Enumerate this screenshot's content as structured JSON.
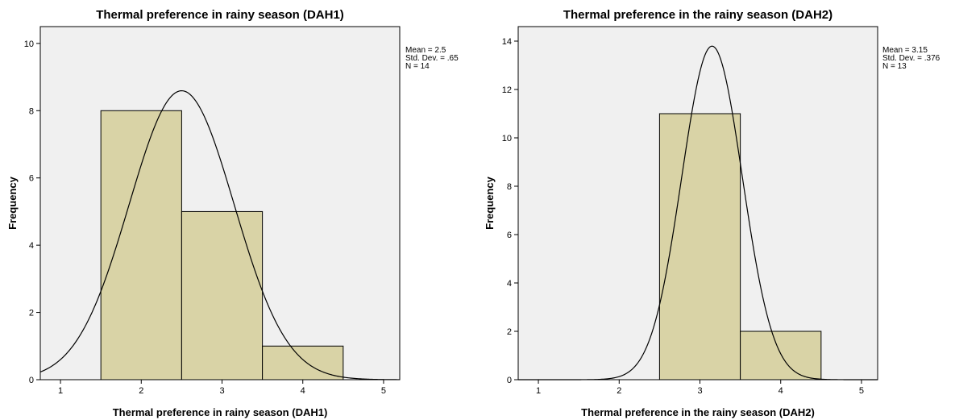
{
  "chart_data": [
    {
      "type": "bar",
      "title": "Thermal preference in rainy season (DAH1)",
      "xlabel": "Thermal preference in rainy season (DAH1)",
      "ylabel": "Frequency",
      "xlim": [
        0.75,
        5.2
      ],
      "ylim": [
        0,
        10.5
      ],
      "xticks": [
        1,
        2,
        3,
        4,
        5
      ],
      "yticks": [
        0,
        2,
        4,
        6,
        8,
        10
      ],
      "bins": [
        {
          "from": 1.5,
          "to": 2.5,
          "value": 8
        },
        {
          "from": 2.5,
          "to": 3.5,
          "value": 5
        },
        {
          "from": 3.5,
          "to": 4.5,
          "value": 1
        }
      ],
      "normal_curve": {
        "mean": 2.5,
        "sd": 0.65,
        "n": 14,
        "bin_width": 1
      },
      "stats": [
        "Mean = 2.5",
        "Std. Dev. = .65",
        "N = 14"
      ],
      "bar_color": "#d9d3a6",
      "background_color": "#f0f0f0",
      "grid": false
    },
    {
      "type": "bar",
      "title": "Thermal preference in the rainy season (DAH2)",
      "xlabel": "Thermal preference in the rainy season (DAH2)",
      "ylabel": "Frequency",
      "xlim": [
        0.75,
        5.2
      ],
      "ylim": [
        0,
        14.6
      ],
      "xticks": [
        1,
        2,
        3,
        4,
        5
      ],
      "yticks": [
        0,
        2,
        4,
        6,
        8,
        10,
        12,
        14
      ],
      "bins": [
        {
          "from": 2.5,
          "to": 3.5,
          "value": 11
        },
        {
          "from": 3.5,
          "to": 4.5,
          "value": 2
        }
      ],
      "normal_curve": {
        "mean": 3.15,
        "sd": 0.376,
        "n": 13,
        "bin_width": 1
      },
      "stats": [
        "Mean = 3.15",
        "Std. Dev. = .376",
        "N = 13"
      ],
      "bar_color": "#d9d3a6",
      "background_color": "#f0f0f0",
      "grid": false
    }
  ]
}
